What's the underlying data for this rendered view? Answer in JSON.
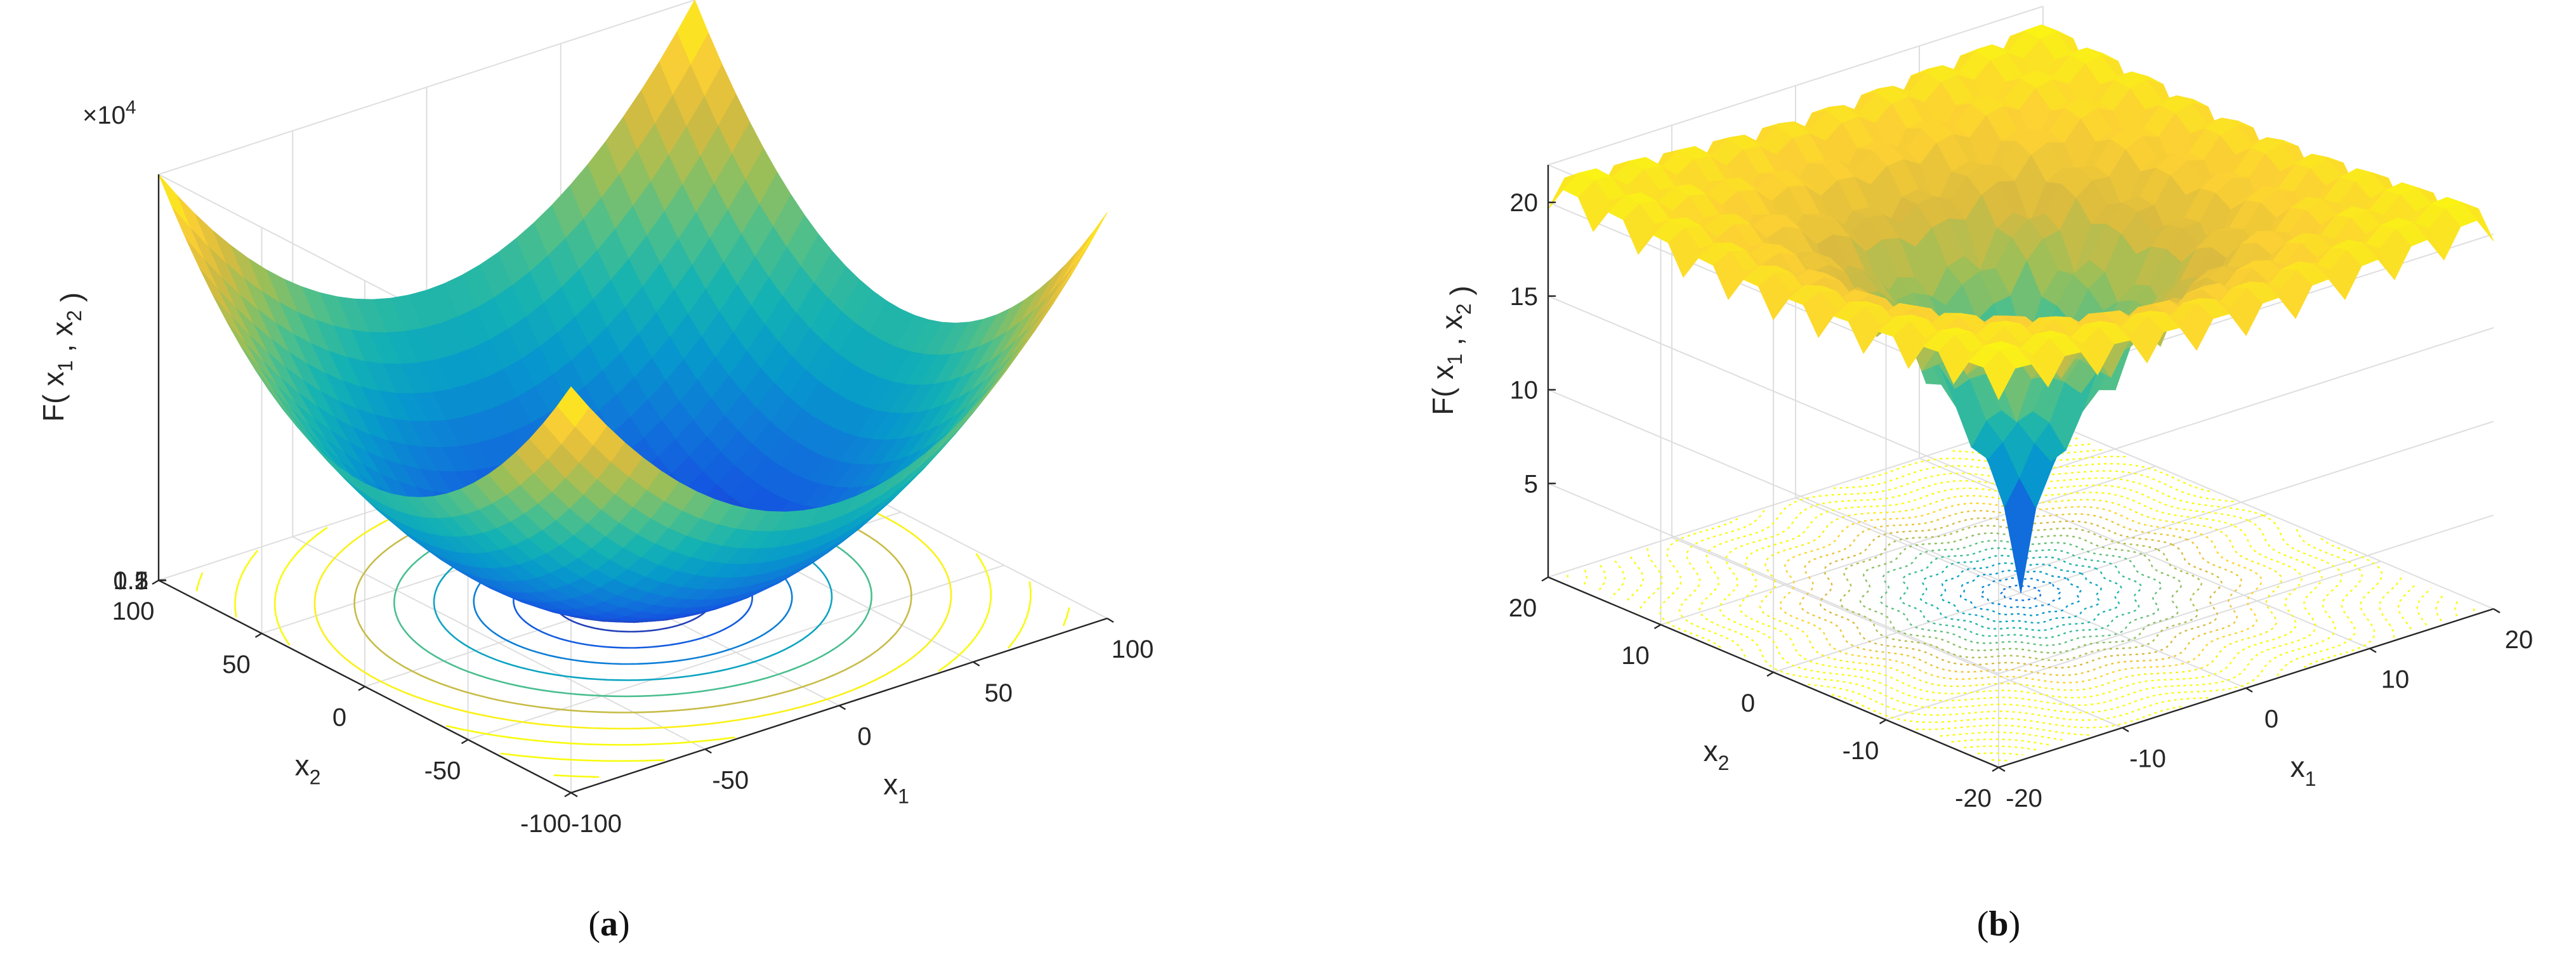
{
  "chart_data": [
    {
      "panel": "a",
      "type": "surface",
      "caption": "(a)",
      "zlabel": "F( x_1 , x_2 )",
      "xlabel": "x_1",
      "ylabel": "x_2",
      "z_exponent_label": "×10",
      "z_exponent_power": "4",
      "xlim": [
        -100,
        100
      ],
      "ylim": [
        -100,
        100
      ],
      "zlim": [
        0,
        20000
      ],
      "x_ticks": [
        "-100",
        "-50",
        "0",
        "50",
        "100"
      ],
      "y_ticks": [
        "-100",
        "-50",
        "0",
        "50",
        "100"
      ],
      "z_ticks": [
        "0.5",
        "1",
        "1.5",
        "2"
      ],
      "contour_projection": true,
      "grid": true,
      "colormap": "parula"
    },
    {
      "panel": "b",
      "type": "surface",
      "caption": "(b)",
      "zlabel": "F( x_1 , x_2 )",
      "xlabel": "x_1",
      "ylabel": "x_2",
      "xlim": [
        -20,
        20
      ],
      "ylim": [
        -20,
        20
      ],
      "zlim": [
        0,
        22
      ],
      "x_ticks": [
        "-20",
        "-10",
        "0",
        "10",
        "20"
      ],
      "y_ticks": [
        "-20",
        "-10",
        "0",
        "10",
        "20"
      ],
      "z_ticks": [
        "5",
        "10",
        "15",
        "20"
      ],
      "contour_projection": true,
      "grid": true,
      "colormap": "parula"
    }
  ]
}
